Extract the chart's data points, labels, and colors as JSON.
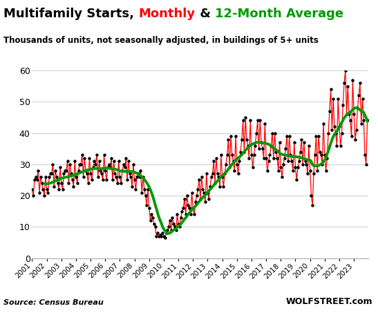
{
  "title_parts": [
    {
      "text": "Multifamily Starts, ",
      "color": "#000000"
    },
    {
      "text": "Monthly",
      "color": "#ff0000"
    },
    {
      "text": " & ",
      "color": "#000000"
    },
    {
      "text": "12-Month Average",
      "color": "#009900"
    }
  ],
  "subtitle": "Thousands of units, not seasonally adjusted, in buildings of 5+ units",
  "source": "Source: Census Bureau",
  "watermark": "WOLFSTREET.com",
  "ylim": [
    0,
    60
  ],
  "yticks": [
    0,
    10,
    20,
    30,
    40,
    50,
    60
  ],
  "xtick_years": [
    "2001",
    "2002",
    "2003",
    "2004",
    "2005",
    "2006",
    "2007",
    "2008",
    "2009",
    "2010",
    "2011",
    "2012",
    "2013",
    "2014",
    "2015",
    "2016",
    "2017",
    "2018",
    "2019",
    "2020",
    "2021",
    "2022",
    "2023"
  ],
  "line_color_monthly": "#ff0000",
  "line_color_avg": "#009900",
  "dot_color": "#000000",
  "background_color": "#ffffff",
  "grid_color": "#cccccc",
  "monthly_data": [
    22.0,
    20.0,
    25.0,
    26.0,
    25.0,
    28.0,
    21.0,
    26.0,
    24.0,
    22.0,
    20.0,
    26.0,
    22.0,
    21.0,
    26.0,
    27.0,
    27.0,
    30.0,
    23.0,
    28.0,
    26.0,
    24.0,
    22.0,
    29.0,
    24.0,
    22.0,
    27.0,
    28.0,
    28.0,
    31.0,
    24.0,
    30.0,
    27.0,
    25.0,
    23.0,
    31.0,
    26.0,
    24.0,
    28.0,
    30.0,
    30.0,
    33.0,
    26.0,
    32.0,
    28.0,
    27.0,
    24.0,
    32.0,
    27.0,
    25.0,
    29.0,
    31.0,
    30.0,
    33.0,
    26.0,
    31.0,
    28.0,
    27.0,
    25.0,
    33.0,
    28.0,
    25.0,
    29.0,
    30.0,
    29.0,
    32.0,
    25.0,
    31.0,
    27.0,
    26.0,
    24.0,
    31.0,
    26.0,
    24.0,
    28.0,
    30.0,
    29.0,
    32.0,
    25.0,
    31.0,
    27.0,
    26.0,
    23.0,
    30.0,
    25.0,
    22.0,
    26.0,
    27.0,
    26.0,
    28.0,
    21.0,
    26.0,
    22.0,
    20.0,
    17.0,
    22.0,
    16.0,
    12.0,
    14.0,
    13.0,
    11.0,
    10.0,
    7.0,
    8.0,
    7.0,
    7.5,
    7.0,
    8.0,
    7.0,
    6.5,
    8.0,
    9.0,
    10.0,
    12.0,
    9.0,
    13.0,
    11.0,
    10.0,
    9.0,
    14.0,
    11.0,
    10.0,
    13.0,
    15.0,
    16.0,
    19.0,
    14.0,
    20.0,
    17.0,
    16.0,
    14.0,
    21.0,
    16.0,
    14.0,
    18.0,
    20.0,
    22.0,
    25.0,
    19.0,
    26.0,
    22.0,
    21.0,
    18.0,
    27.0,
    21.0,
    19.0,
    23.0,
    26.0,
    27.0,
    31.0,
    24.0,
    32.0,
    27.0,
    26.0,
    23.0,
    33.0,
    26.0,
    23.0,
    27.0,
    30.0,
    33.0,
    38.0,
    29.0,
    39.0,
    33.0,
    31.0,
    28.0,
    39.0,
    30.0,
    27.0,
    31.0,
    34.0,
    38.0,
    44.0,
    34.0,
    45.0,
    38.0,
    36.0,
    32.0,
    44.0,
    33.0,
    29.0,
    33.0,
    36.0,
    40.0,
    44.0,
    35.0,
    44.0,
    37.0,
    35.0,
    32.0,
    43.0,
    32.0,
    28.0,
    31.0,
    33.0,
    36.0,
    40.0,
    32.0,
    40.0,
    34.0,
    32.0,
    28.0,
    37.0,
    29.0,
    26.0,
    30.0,
    32.0,
    35.0,
    39.0,
    31.0,
    39.0,
    33.0,
    31.0,
    28.0,
    37.0,
    29.0,
    25.0,
    29.0,
    31.0,
    34.0,
    38.0,
    30.0,
    37.0,
    31.0,
    30.0,
    27.0,
    36.0,
    28.0,
    20.0,
    17.0,
    27.0,
    33.0,
    39.0,
    28.0,
    39.0,
    34.0,
    33.0,
    30.0,
    43.0,
    33.0,
    28.0,
    32.0,
    40.0,
    47.0,
    54.0,
    41.0,
    51.0,
    42.0,
    40.0,
    36.0,
    51.0,
    42.0,
    36.0,
    40.0,
    49.0,
    56.0,
    60.0,
    46.0,
    55.0,
    46.0,
    44.0,
    39.0,
    57.0,
    46.0,
    38.0,
    41.0,
    48.0,
    52.0,
    56.0,
    43.0,
    51.0,
    44.0,
    33.0,
    30.0,
    44.0
  ]
}
